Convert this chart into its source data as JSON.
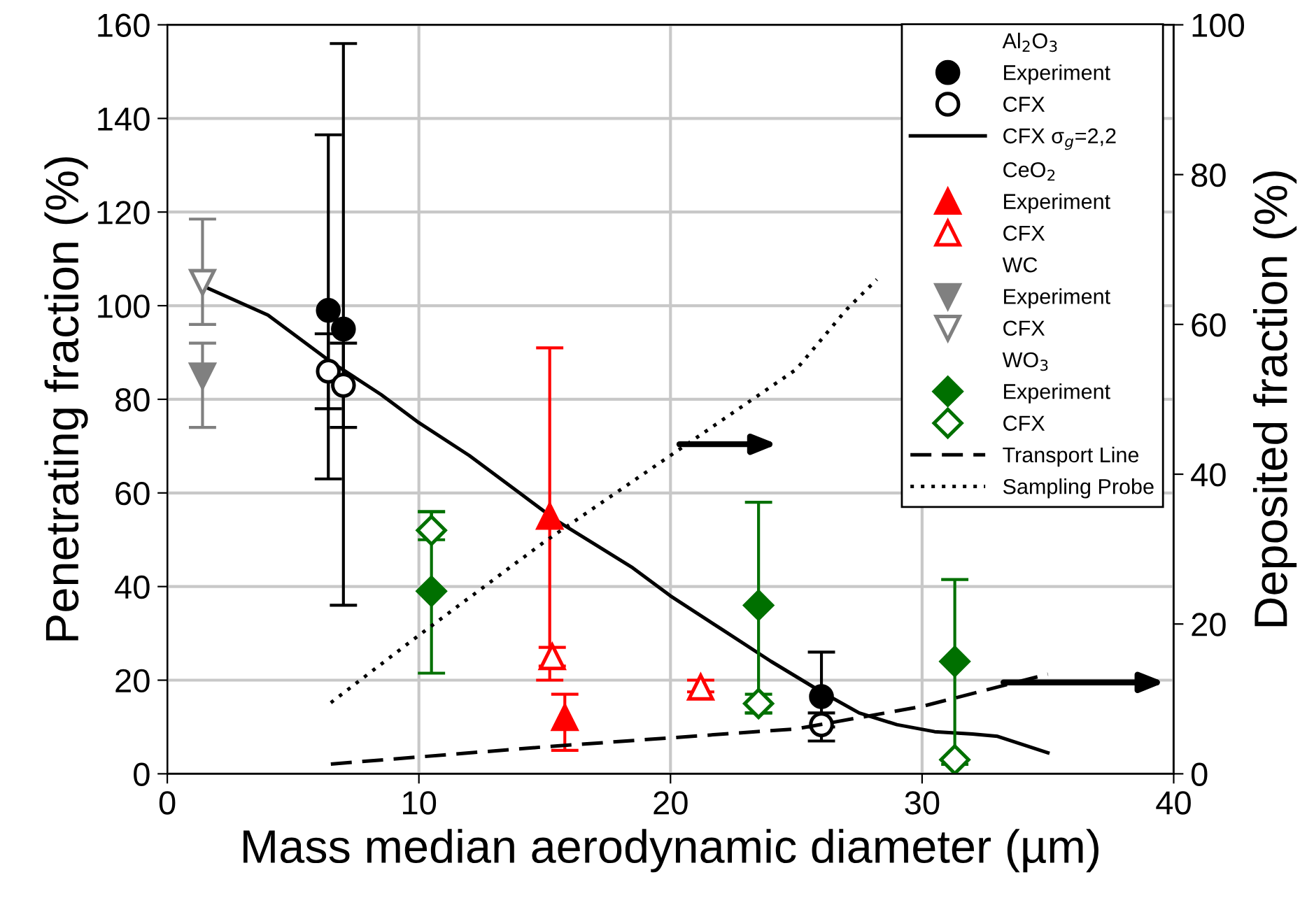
{
  "chart_data": {
    "type": "scatter",
    "xlabel": "Mass median aerodynamic diameter (µm)",
    "ylabel": "Penetrating fraction (%)",
    "y2label": "Deposited fraction (%)",
    "xlim": [
      0,
      40
    ],
    "xticks": [
      0,
      10,
      20,
      30,
      40
    ],
    "ylim": [
      0,
      160
    ],
    "yticks": [
      0,
      20,
      40,
      60,
      80,
      100,
      120,
      140,
      160
    ],
    "y2lim": [
      0,
      100
    ],
    "y2ticks": [
      0,
      20,
      40,
      60,
      80,
      100
    ],
    "grid": true,
    "legend": "top right",
    "series": [
      {
        "name": "Al$_{2}$O$_{3}$",
        "marker": "none"
      },
      {
        "name": "Experiment",
        "marker": "circle",
        "color": "#000000",
        "x": [
          6.4,
          7.0,
          26.0
        ],
        "values": [
          99,
          95,
          16.5
        ],
        "errors": [
          [
            63,
            136.5
          ],
          [
            36,
            156
          ],
          [
            10,
            26
          ]
        ]
      },
      {
        "name": "CFX",
        "marker": "circle-open",
        "color": "#000000",
        "x": [
          6.4,
          7.0,
          26.0
        ],
        "values": [
          86,
          83,
          10.5
        ],
        "errors": [
          [
            78,
            94
          ],
          [
            74,
            92
          ],
          [
            7,
            13
          ]
        ]
      },
      {
        "name": "CFX σ$_{g}$=2,2",
        "type": "line",
        "line_style": "solid",
        "color": "#000000",
        "x": [
          1.5,
          4,
          6.5,
          8.5,
          10,
          12,
          14,
          15.5,
          17,
          18.5,
          20,
          22,
          24,
          26,
          27.5,
          29,
          30.5,
          32,
          33,
          35
        ],
        "values": [
          104,
          98,
          88,
          81,
          75,
          68,
          60,
          54,
          49,
          44,
          38,
          31,
          24,
          17.5,
          13,
          10.5,
          9,
          8.5,
          8,
          4.5
        ]
      },
      {
        "name": "CeO$_{2}$",
        "marker": "none"
      },
      {
        "name": "Experiment",
        "marker": "triangle",
        "color": "#ff0000",
        "x": [
          15.2,
          15.8
        ],
        "values": [
          55,
          12
        ],
        "errors": [
          [
            20,
            91
          ],
          [
            5,
            17
          ]
        ]
      },
      {
        "name": "CFX",
        "marker": "triangle-open",
        "color": "#ff0000",
        "x": [
          15.3,
          21.2
        ],
        "values": [
          25,
          18.5
        ],
        "errors": [
          [
            23,
            27
          ],
          [
            17.5,
            20
          ]
        ]
      },
      {
        "name": "WC",
        "marker": "none"
      },
      {
        "name": "Experiment",
        "marker": "triangle_down",
        "color": "#808080",
        "x": [
          1.4
        ],
        "values": [
          85
        ],
        "errors": [
          [
            74,
            92
          ]
        ]
      },
      {
        "name": "CFX",
        "marker": "triangle_down-open",
        "color": "#808080",
        "x": [
          1.4
        ],
        "values": [
          105
        ],
        "errors": [
          [
            96,
            118.5
          ]
        ]
      },
      {
        "name": "WO$_{3}$",
        "marker": "none"
      },
      {
        "name": "Experiment",
        "marker": "diamond",
        "color": "#007000",
        "x": [
          10.5,
          23.5,
          31.3
        ],
        "values": [
          39,
          36,
          24
        ],
        "errors": [
          [
            21.5,
            56
          ],
          [
            13,
            58
          ],
          [
            2,
            41.5
          ]
        ]
      },
      {
        "name": "CFX",
        "marker": "diamond-open",
        "color": "#007000",
        "x": [
          10.5,
          23.5,
          31.3
        ],
        "values": [
          52,
          15,
          3
        ],
        "errors": [
          [
            50,
            56
          ],
          [
            13,
            17
          ],
          null
        ]
      },
      {
        "name": "Transport Line",
        "type": "line",
        "axis": "y2",
        "line_style": "dashed",
        "color": "#000000",
        "x": [
          6.5,
          15,
          25,
          30,
          35
        ],
        "values": [
          1.3,
          3.6,
          6,
          9,
          13.3
        ]
      },
      {
        "name": "Sampling Probe",
        "type": "line",
        "axis": "y2",
        "line_style": "dotted",
        "color": "#000000",
        "x": [
          6.5,
          10,
          15,
          20,
          25,
          27,
          28.2
        ],
        "values": [
          9.5,
          18.5,
          31,
          42.5,
          54,
          62,
          66
        ]
      }
    ]
  }
}
